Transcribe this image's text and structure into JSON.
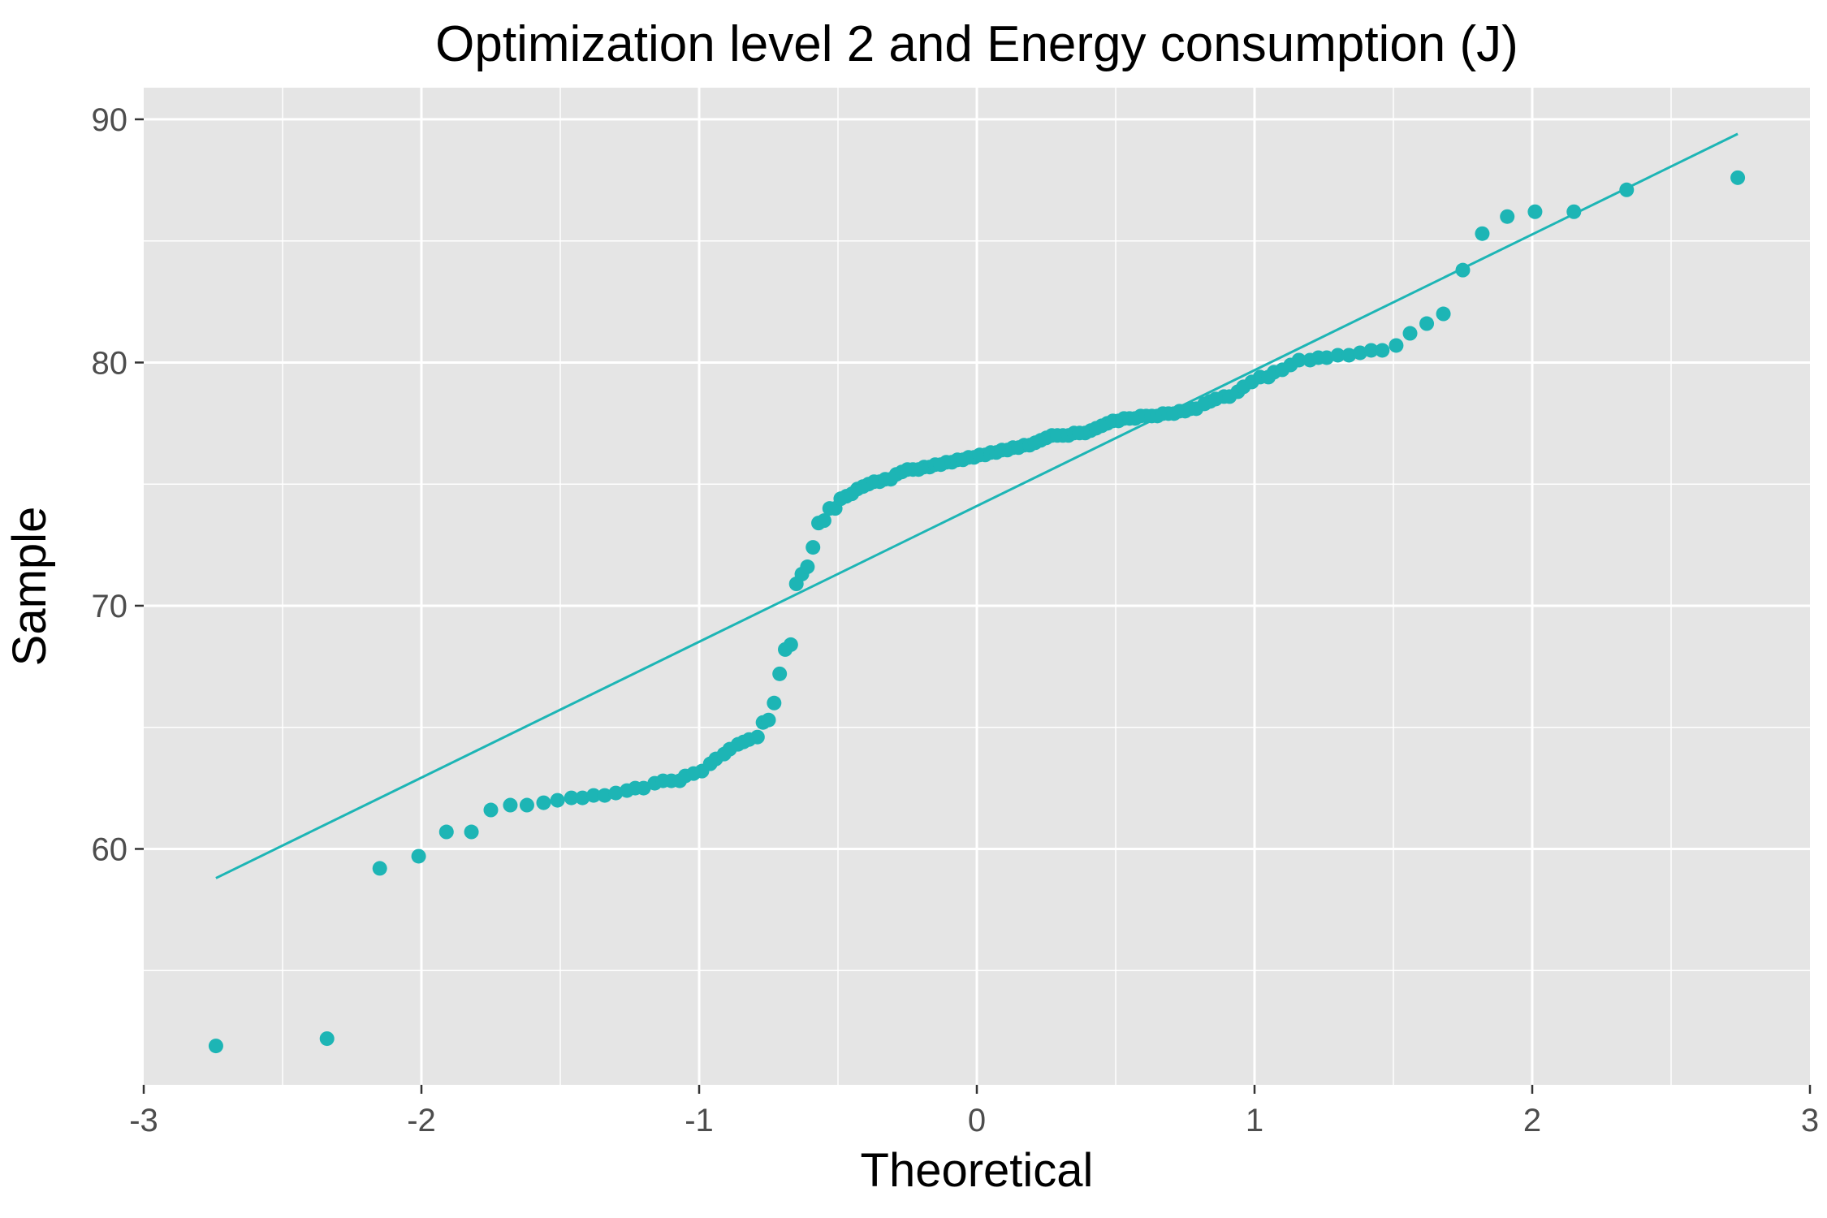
{
  "chart_data": {
    "type": "scatter",
    "title": "Optimization level 2 and Energy consumption (J)",
    "xlabel": "Theoretical",
    "ylabel": "Sample",
    "xlim": [
      -3,
      3
    ],
    "ylim": [
      50.3,
      91.3
    ],
    "x_ticks": [
      -3,
      -2,
      -1,
      0,
      1,
      2,
      3
    ],
    "x_tick_labels": [
      "-3",
      "-2",
      "-1",
      "0",
      "1",
      "2",
      "3"
    ],
    "y_ticks": [
      60,
      70,
      80,
      90
    ],
    "y_tick_labels": [
      "60",
      "70",
      "80",
      "90"
    ],
    "grid": true,
    "legend": "none",
    "colors": {
      "point": "#1db5b5",
      "line": "#1db5b5",
      "panel": "#e5e5e5",
      "grid": "#ffffff"
    },
    "reference_line": {
      "x": [
        -2.74,
        2.74
      ],
      "y": [
        58.8,
        89.4
      ]
    },
    "series": [
      {
        "points": [
          [
            -2.74,
            51.9
          ],
          [
            -2.34,
            52.2
          ],
          [
            -2.15,
            59.2
          ],
          [
            -2.01,
            59.7
          ],
          [
            -1.91,
            60.7
          ],
          [
            -1.82,
            60.7
          ],
          [
            -1.75,
            61.6
          ],
          [
            -1.68,
            61.8
          ],
          [
            -1.62,
            61.8
          ],
          [
            -1.56,
            61.9
          ],
          [
            -1.51,
            62.0
          ],
          [
            -1.46,
            62.1
          ],
          [
            -1.42,
            62.1
          ],
          [
            -1.38,
            62.2
          ],
          [
            -1.34,
            62.2
          ],
          [
            -1.3,
            62.3
          ],
          [
            -1.26,
            62.4
          ],
          [
            -1.23,
            62.5
          ],
          [
            -1.2,
            62.5
          ],
          [
            -1.16,
            62.7
          ],
          [
            -1.13,
            62.8
          ],
          [
            -1.1,
            62.8
          ],
          [
            -1.07,
            62.8
          ],
          [
            -1.05,
            63.0
          ],
          [
            -1.02,
            63.1
          ],
          [
            -0.99,
            63.2
          ],
          [
            -0.96,
            63.5
          ],
          [
            -0.94,
            63.7
          ],
          [
            -0.91,
            63.9
          ],
          [
            -0.89,
            64.1
          ],
          [
            -0.86,
            64.3
          ],
          [
            -0.84,
            64.4
          ],
          [
            -0.82,
            64.5
          ],
          [
            -0.79,
            64.6
          ],
          [
            -0.77,
            65.2
          ],
          [
            -0.75,
            65.3
          ],
          [
            -0.73,
            66.0
          ],
          [
            -0.71,
            67.2
          ],
          [
            -0.69,
            68.2
          ],
          [
            -0.67,
            68.4
          ],
          [
            -0.65,
            70.9
          ],
          [
            -0.63,
            71.3
          ],
          [
            -0.61,
            71.6
          ],
          [
            -0.59,
            72.4
          ],
          [
            -0.57,
            73.4
          ],
          [
            -0.55,
            73.5
          ],
          [
            -0.53,
            74.0
          ],
          [
            -0.51,
            74.0
          ],
          [
            -0.49,
            74.4
          ],
          [
            -0.47,
            74.5
          ],
          [
            -0.45,
            74.6
          ],
          [
            -0.43,
            74.8
          ],
          [
            -0.41,
            74.9
          ],
          [
            -0.39,
            75.0
          ],
          [
            -0.37,
            75.1
          ],
          [
            -0.35,
            75.1
          ],
          [
            -0.33,
            75.2
          ],
          [
            -0.31,
            75.2
          ],
          [
            -0.29,
            75.4
          ],
          [
            -0.27,
            75.5
          ],
          [
            -0.25,
            75.6
          ],
          [
            -0.23,
            75.6
          ],
          [
            -0.21,
            75.6
          ],
          [
            -0.19,
            75.7
          ],
          [
            -0.17,
            75.7
          ],
          [
            -0.15,
            75.8
          ],
          [
            -0.13,
            75.8
          ],
          [
            -0.11,
            75.9
          ],
          [
            -0.09,
            75.9
          ],
          [
            -0.07,
            76.0
          ],
          [
            -0.05,
            76.0
          ],
          [
            -0.03,
            76.1
          ],
          [
            -0.01,
            76.1
          ],
          [
            0.01,
            76.2
          ],
          [
            0.03,
            76.2
          ],
          [
            0.05,
            76.3
          ],
          [
            0.07,
            76.3
          ],
          [
            0.09,
            76.4
          ],
          [
            0.11,
            76.4
          ],
          [
            0.13,
            76.5
          ],
          [
            0.15,
            76.5
          ],
          [
            0.17,
            76.6
          ],
          [
            0.19,
            76.6
          ],
          [
            0.21,
            76.7
          ],
          [
            0.23,
            76.8
          ],
          [
            0.25,
            76.9
          ],
          [
            0.27,
            77.0
          ],
          [
            0.29,
            77.0
          ],
          [
            0.31,
            77.0
          ],
          [
            0.33,
            77.0
          ],
          [
            0.35,
            77.1
          ],
          [
            0.37,
            77.1
          ],
          [
            0.39,
            77.1
          ],
          [
            0.41,
            77.2
          ],
          [
            0.43,
            77.3
          ],
          [
            0.45,
            77.4
          ],
          [
            0.47,
            77.5
          ],
          [
            0.49,
            77.6
          ],
          [
            0.51,
            77.6
          ],
          [
            0.53,
            77.7
          ],
          [
            0.55,
            77.7
          ],
          [
            0.57,
            77.7
          ],
          [
            0.59,
            77.8
          ],
          [
            0.61,
            77.8
          ],
          [
            0.63,
            77.8
          ],
          [
            0.65,
            77.8
          ],
          [
            0.67,
            77.9
          ],
          [
            0.69,
            77.9
          ],
          [
            0.71,
            77.9
          ],
          [
            0.73,
            78.0
          ],
          [
            0.75,
            78.0
          ],
          [
            0.77,
            78.1
          ],
          [
            0.79,
            78.1
          ],
          [
            0.82,
            78.3
          ],
          [
            0.84,
            78.4
          ],
          [
            0.86,
            78.5
          ],
          [
            0.89,
            78.6
          ],
          [
            0.91,
            78.6
          ],
          [
            0.94,
            78.8
          ],
          [
            0.96,
            79.0
          ],
          [
            0.99,
            79.2
          ],
          [
            1.02,
            79.4
          ],
          [
            1.05,
            79.4
          ],
          [
            1.07,
            79.6
          ],
          [
            1.1,
            79.7
          ],
          [
            1.13,
            79.9
          ],
          [
            1.16,
            80.1
          ],
          [
            1.2,
            80.1
          ],
          [
            1.23,
            80.2
          ],
          [
            1.26,
            80.2
          ],
          [
            1.3,
            80.3
          ],
          [
            1.34,
            80.3
          ],
          [
            1.38,
            80.4
          ],
          [
            1.42,
            80.5
          ],
          [
            1.46,
            80.5
          ],
          [
            1.51,
            80.7
          ],
          [
            1.56,
            81.2
          ],
          [
            1.62,
            81.6
          ],
          [
            1.68,
            82.0
          ],
          [
            1.75,
            83.8
          ],
          [
            1.82,
            85.3
          ],
          [
            1.91,
            86.0
          ],
          [
            2.01,
            86.2
          ],
          [
            2.15,
            86.2
          ],
          [
            2.34,
            87.1
          ],
          [
            2.74,
            87.6
          ]
        ]
      }
    ]
  }
}
